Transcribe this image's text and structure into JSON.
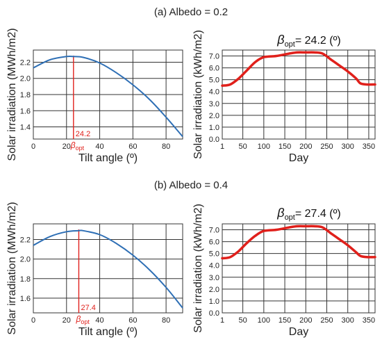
{
  "panels": [
    {
      "caption": "(a) Albedo = 0.2",
      "tilt_optimum_label": "24.2",
      "opt_symbol": "β",
      "opt_subscript": "opt",
      "daily_title_prefix": "β",
      "daily_title_subscript": "opt",
      "daily_title_suffix": "= 24.2 (º)"
    },
    {
      "caption": "(b) Albedo = 0.4",
      "tilt_optimum_label": "27.4",
      "opt_symbol": "β",
      "opt_subscript": "opt",
      "daily_title_prefix": "β",
      "daily_title_subscript": "opt",
      "daily_title_suffix": "= 27.4 (º)"
    }
  ],
  "colors": {
    "tilt_curve": "#2e6fb5",
    "daily_curve": "#e0201b",
    "optimum_line": "#e0201b"
  },
  "chart_data": [
    {
      "type": "line",
      "panel": "(a)",
      "xlabel": "Tilt angle (º)",
      "ylabel": "Solar irradiation (MWh/m2)",
      "xlim": [
        0,
        90
      ],
      "ylim": [
        1.25,
        2.35
      ],
      "x_ticks": [
        0,
        20,
        40,
        60,
        80
      ],
      "y_ticks": [
        1.4,
        1.6,
        1.8,
        2.0,
        2.2
      ],
      "x_tick_labels": [
        "0",
        "20",
        "40",
        "60",
        "80"
      ],
      "y_tick_labels": [
        "1.4",
        "1.6",
        "1.8",
        "2.0",
        "2.2"
      ],
      "grid": true,
      "x": [
        0,
        10,
        20,
        24.2,
        30,
        40,
        50,
        60,
        70,
        80,
        90
      ],
      "y": [
        2.13,
        2.23,
        2.27,
        2.27,
        2.26,
        2.19,
        2.07,
        1.92,
        1.74,
        1.52,
        1.28
      ],
      "optimum_x": 24.2
    },
    {
      "type": "line",
      "panel": "(a)",
      "xlabel": "Day",
      "ylabel": "Solar irradiation (kWh/m2)",
      "xlim": [
        1,
        365
      ],
      "ylim": [
        0,
        7.5
      ],
      "x_ticks": [
        1,
        50,
        100,
        150,
        200,
        250,
        300,
        350
      ],
      "y_ticks": [
        0,
        1,
        2,
        3,
        4,
        5,
        6,
        7
      ],
      "x_tick_labels": [
        "1",
        "50",
        "100",
        "150",
        "200",
        "250",
        "300",
        "350"
      ],
      "y_tick_labels": [
        "0.0",
        "1.0",
        "2.0",
        "3.0",
        "4.0",
        "5.0",
        "6.0",
        "7.0"
      ],
      "grid": true,
      "x": [
        1,
        20,
        40,
        60,
        80,
        100,
        130,
        160,
        180,
        200,
        220,
        240,
        260,
        280,
        300,
        320,
        330,
        345,
        365
      ],
      "y": [
        4.5,
        4.6,
        5.1,
        5.8,
        6.5,
        6.9,
        7.0,
        7.2,
        7.3,
        7.3,
        7.3,
        7.2,
        6.7,
        6.2,
        5.7,
        5.1,
        4.7,
        4.6,
        4.6
      ]
    },
    {
      "type": "line",
      "panel": "(b)",
      "xlabel": "Tilt angle (º)",
      "ylabel": "Solar irradiation (MWh/m2)",
      "xlim": [
        0,
        90
      ],
      "ylim": [
        1.45,
        2.36
      ],
      "x_ticks": [
        0,
        20,
        40,
        60,
        80
      ],
      "y_ticks": [
        1.6,
        1.8,
        2.0,
        2.2
      ],
      "x_tick_labels": [
        "0",
        "20",
        "40",
        "60",
        "80"
      ],
      "y_tick_labels": [
        "1.6",
        "1.8",
        "2.0",
        "2.2"
      ],
      "grid": true,
      "x": [
        0,
        10,
        20,
        27.4,
        30,
        40,
        50,
        60,
        70,
        80,
        90
      ],
      "y": [
        2.14,
        2.23,
        2.28,
        2.29,
        2.29,
        2.25,
        2.16,
        2.04,
        1.89,
        1.71,
        1.5
      ],
      "optimum_x": 27.4
    },
    {
      "type": "line",
      "panel": "(b)",
      "xlabel": "Day",
      "ylabel": "Solar irradiation (kWh/m2)",
      "xlim": [
        1,
        365
      ],
      "ylim": [
        0,
        7.5
      ],
      "x_ticks": [
        1,
        50,
        100,
        150,
        200,
        250,
        300,
        350
      ],
      "y_ticks": [
        0,
        1,
        2,
        3,
        4,
        5,
        6,
        7
      ],
      "x_tick_labels": [
        "1",
        "50",
        "100",
        "150",
        "200",
        "250",
        "300",
        "350"
      ],
      "y_tick_labels": [
        "0.0",
        "1.0",
        "2.0",
        "3.0",
        "4.0",
        "5.0",
        "6.0",
        "7.0"
      ],
      "grid": true,
      "x": [
        1,
        20,
        40,
        60,
        80,
        100,
        130,
        160,
        180,
        200,
        220,
        240,
        260,
        280,
        300,
        320,
        330,
        345,
        365
      ],
      "y": [
        4.6,
        4.7,
        5.2,
        5.9,
        6.5,
        6.9,
        7.0,
        7.2,
        7.3,
        7.3,
        7.3,
        7.2,
        6.7,
        6.2,
        5.7,
        5.1,
        4.8,
        4.7,
        4.7
      ]
    }
  ]
}
